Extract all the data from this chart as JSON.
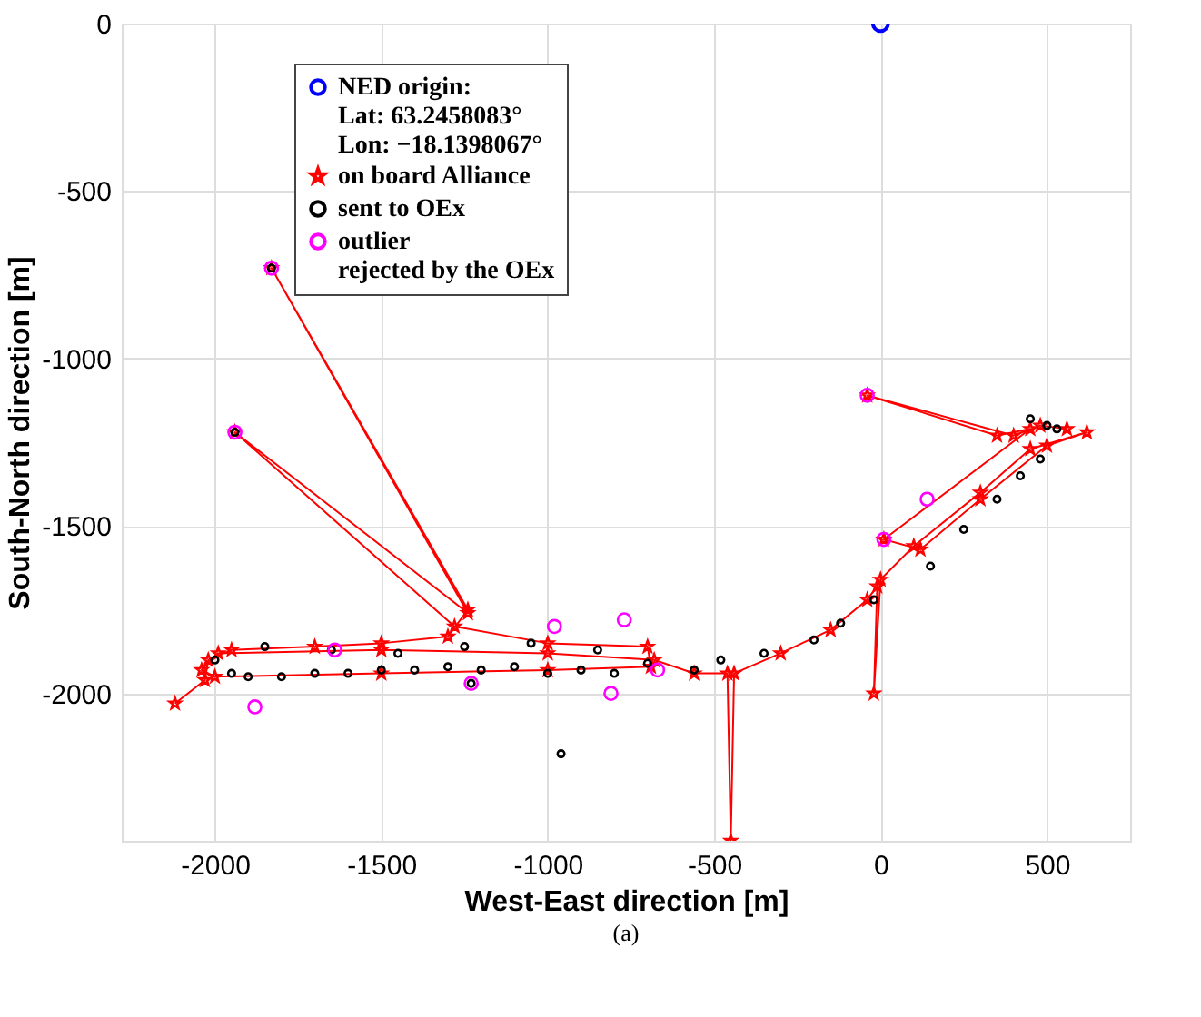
{
  "chart_data": {
    "type": "scatter",
    "xlabel": "West-East direction [m]",
    "ylabel": "South-North direction [m]",
    "xlim": [
      -2280,
      750
    ],
    "ylim": [
      -2440,
      0
    ],
    "xticks": [
      -2000,
      -1500,
      -1000,
      -500,
      0,
      500
    ],
    "yticks": [
      -2000,
      -1500,
      -1000,
      -500,
      0
    ],
    "grid": true,
    "legend": "top",
    "annotations": [
      "(a)"
    ],
    "series": [
      {
        "name": "NED origin:\nLat: 63.2458083°\nLon: −18.1398067°",
        "marker": "circle",
        "color": "#0000ff",
        "x": [
          0
        ],
        "values": [
          0
        ]
      },
      {
        "name": "on board Alliance",
        "type": "line",
        "marker": "star",
        "color": "#ff0000",
        "x": [
          -2120,
          -2030,
          -2020,
          -1950,
          -1700,
          -1500,
          -1300,
          -1240,
          -1830,
          -1240,
          -1940,
          -1280,
          -1000,
          -700,
          -690,
          -1000,
          -1500,
          -2000,
          -2040,
          -1990,
          -1500,
          -1000,
          -680,
          -560,
          -460,
          -450,
          -440,
          -300,
          -150,
          -40,
          -10,
          -20,
          0,
          100,
          300,
          450,
          620,
          500,
          300,
          120,
          10,
          450,
          350,
          -40,
          400,
          480,
          560
        ],
        "values": [
          -2030,
          -1960,
          -1900,
          -1870,
          -1860,
          -1850,
          -1830,
          -1750,
          -730,
          -1760,
          -1220,
          -1800,
          -1850,
          -1860,
          -1920,
          -1930,
          -1940,
          -1950,
          -1930,
          -1880,
          -1870,
          -1880,
          -1900,
          -1940,
          -1940,
          -2440,
          -1940,
          -1880,
          -1810,
          -1720,
          -1680,
          -2000,
          -1660,
          -1560,
          -1400,
          -1270,
          -1220,
          -1260,
          -1420,
          -1570,
          -1540,
          -1210,
          -1230,
          -1110,
          -1230,
          -1200,
          -1210
        ]
      },
      {
        "name": "sent to OEx",
        "marker": "circle",
        "color": "#000000",
        "x": [
          -2000,
          -1950,
          -1900,
          -1800,
          -1700,
          -1600,
          -1500,
          -1400,
          -1300,
          -1200,
          -1100,
          -1000,
          -900,
          -800,
          -700,
          -1850,
          -1650,
          -1450,
          -1250,
          -1050,
          -850,
          -960,
          -560,
          -480,
          -350,
          -200,
          -120,
          -20,
          150,
          250,
          350,
          420,
          480,
          500,
          530,
          450,
          -1230,
          -1830,
          -1940
        ],
        "values": [
          -1900,
          -1940,
          -1950,
          -1950,
          -1940,
          -1940,
          -1930,
          -1930,
          -1920,
          -1930,
          -1920,
          -1940,
          -1930,
          -1940,
          -1910,
          -1860,
          -1870,
          -1880,
          -1860,
          -1850,
          -1870,
          -2180,
          -1930,
          -1900,
          -1880,
          -1840,
          -1790,
          -1720,
          -1620,
          -1510,
          -1420,
          -1350,
          -1300,
          -1200,
          -1210,
          -1180,
          -1970,
          -730,
          -1220
        ]
      },
      {
        "name": "outlier\nrejected by the OEx",
        "marker": "circle",
        "color": "#ff00ff",
        "x": [
          -1830,
          -1940,
          -1880,
          -1640,
          -1230,
          -980,
          -810,
          -770,
          -670,
          -40,
          140,
          10
        ],
        "values": [
          -730,
          -1220,
          -2040,
          -1870,
          -1970,
          -1800,
          -2000,
          -1780,
          -1930,
          -1110,
          -1420,
          -1540
        ]
      }
    ]
  }
}
